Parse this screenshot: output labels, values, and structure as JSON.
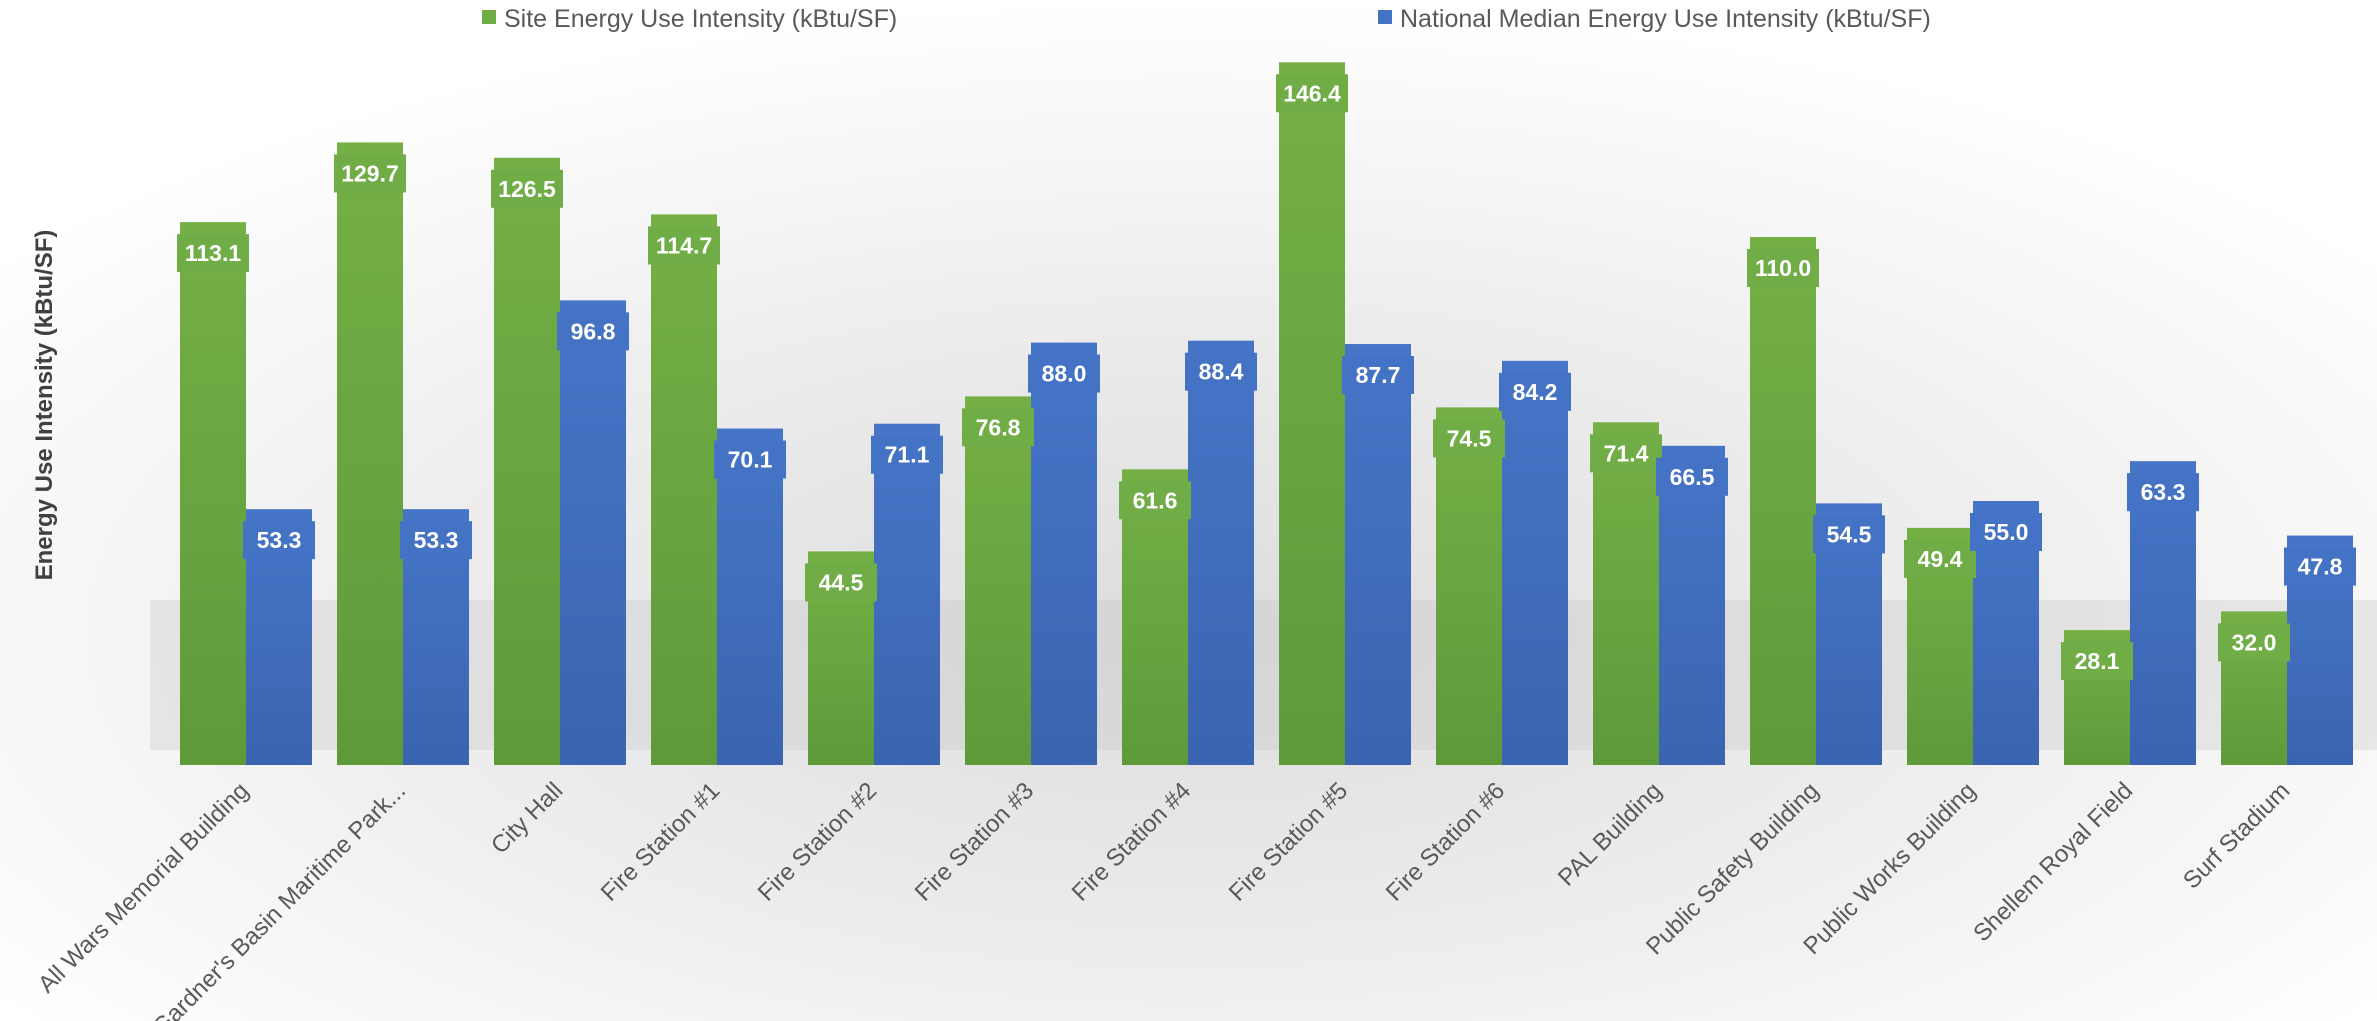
{
  "chart_data": {
    "type": "bar",
    "title": "",
    "xlabel": "",
    "ylabel": "Energy Use Intensity (kBtu/SF)",
    "ylim": [
      0,
      150
    ],
    "grid": false,
    "legend_position": "top",
    "categories": [
      "All Wars Memorial Building",
      "Gardner's Basin Maritime Park...",
      "City Hall",
      "Fire Station #1",
      "Fire Station #2",
      "Fire Station #3",
      "Fire Station #4",
      "Fire Station #5",
      "Fire Station #6",
      "PAL Building",
      "Public Safety Building",
      "Public Works Building",
      "Shellem Royal Field",
      "Surf Stadium"
    ],
    "series": [
      {
        "name": "Site Energy Use Intensity (kBtu/SF)",
        "color": "#70AD47",
        "values": [
          113.1,
          129.7,
          126.5,
          114.7,
          44.5,
          76.8,
          61.6,
          146.4,
          74.5,
          71.4,
          110.0,
          49.4,
          28.1,
          32.0
        ],
        "labels": [
          "113.1",
          "129.7",
          "126.5",
          "114.7",
          "44.5",
          "76.8",
          "61.6",
          "146.4",
          "74.5",
          "71.4",
          "110.0",
          "49.4",
          "28.1",
          "32.0"
        ]
      },
      {
        "name": "National Median Energy Use Intensity (kBtu/SF)",
        "color": "#4472C4",
        "values": [
          53.3,
          53.3,
          96.8,
          70.1,
          71.1,
          88.0,
          88.4,
          87.7,
          84.2,
          66.5,
          54.5,
          55.0,
          63.3,
          47.8
        ],
        "labels": [
          "53.3",
          "53.3",
          "96.8",
          "70.1",
          "71.1",
          "88.0",
          "88.4",
          "87.7",
          "84.2",
          "66.5",
          "54.5",
          "55.0",
          "63.3",
          "47.8"
        ]
      }
    ]
  }
}
